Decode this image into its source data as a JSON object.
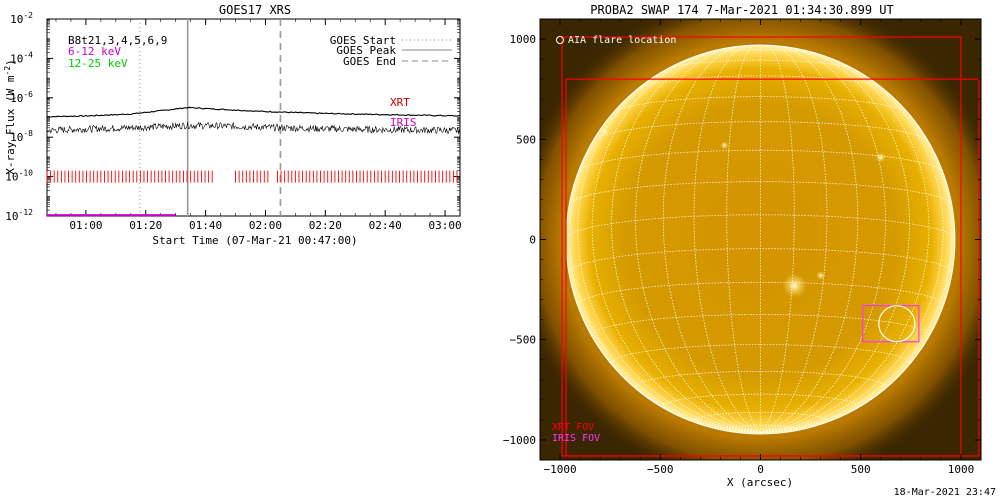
{
  "footer": {
    "timestamp": "18-Mar-2021 23:47"
  },
  "colors": {
    "xrt": "#ff0000",
    "iris": "#cc00cc",
    "green": "#00cc00",
    "sun_core": "#e8a500",
    "grid": "#ffffff"
  },
  "chart_data": [
    {
      "type": "line",
      "title": "GOES17 XRS",
      "xlabel": "Start Time (07-Mar-21 00:47:00)",
      "ylabel": "X-ray Flux (W m",
      "ylabel_sup": "-2",
      "ylabel_close": ")",
      "y_scale": "log",
      "xlim": [
        "00:47",
        "03:05"
      ],
      "ylim": [
        1e-12,
        0.01
      ],
      "x_ticks": [
        "01:00",
        "01:20",
        "01:40",
        "02:00",
        "02:20",
        "02:40",
        "03:00"
      ],
      "y_ticks": [
        {
          "base": "10",
          "exp": "-2"
        },
        {
          "base": "10",
          "exp": "-4"
        },
        {
          "base": "10",
          "exp": "-6"
        },
        {
          "base": "10",
          "exp": "-8"
        },
        {
          "base": "10",
          "exp": "-10"
        },
        {
          "base": "10",
          "exp": "-12"
        }
      ],
      "info_lines": [
        {
          "text": "B8t21,3,4,5,6,9",
          "color": "#000000"
        },
        {
          "text": "6-12 keV",
          "color": "#cc00cc"
        },
        {
          "text": "12-25 keV",
          "color": "#00cc00"
        }
      ],
      "legend": [
        {
          "label": "GOES Start",
          "style": "dotted"
        },
        {
          "label": "GOES Peak",
          "style": "solid"
        },
        {
          "label": "GOES End",
          "style": "dashed"
        }
      ],
      "legend_position": "top-right",
      "event_lines": [
        {
          "name": "GOES Start",
          "time": "01:18",
          "style": "dotted"
        },
        {
          "name": "GOES Peak",
          "time": "01:34",
          "style": "solid"
        },
        {
          "name": "GOES End",
          "time": "02:05",
          "style": "dashed"
        }
      ],
      "series": [
        {
          "name": "",
          "band": "long",
          "x": [
            "00:47",
            "01:00",
            "01:15",
            "01:25",
            "01:34",
            "01:45",
            "02:00",
            "02:20",
            "02:40",
            "03:05"
          ],
          "y": [
            1.1e-07,
            1.2e-07,
            1.5e-07,
            2.2e-07,
            3.2e-07,
            2.6e-07,
            2e-07,
            1.6e-07,
            1.4e-07,
            1.2e-07
          ]
        },
        {
          "name": "",
          "band": "short",
          "x": [
            "00:47",
            "01:00",
            "01:20",
            "01:34",
            "01:50",
            "02:05",
            "02:30",
            "03:05"
          ],
          "y": [
            2.2e-08,
            2.6e-08,
            3.2e-08,
            4e-08,
            3.6e-08,
            3e-08,
            2.5e-08,
            2.2e-08
          ]
        }
      ],
      "xrt_label": "XRT",
      "iris_label": "IRIS",
      "xrt_coverage": {
        "y": 1e-10,
        "segments": [
          [
            "00:47",
            "01:34"
          ],
          [
            "01:35",
            "01:43"
          ],
          [
            "01:50",
            "02:02"
          ],
          [
            "02:04",
            "03:05"
          ]
        ]
      },
      "iris_coverage": {
        "y": 1.1e-12,
        "segments": [
          [
            "00:47",
            "01:30"
          ]
        ]
      }
    },
    {
      "type": "image",
      "title": "PROBA2 SWAP 174  7-Mar-2021 01:34:30.899 UT",
      "xlabel": "X (arcsec)",
      "ylabel": "",
      "xlim": [
        -1100,
        1100
      ],
      "ylim": [
        -1100,
        1100
      ],
      "x_ticks": [
        -1000,
        -500,
        0,
        500,
        1000
      ],
      "y_ticks": [
        -1000,
        -500,
        0,
        500,
        1000
      ],
      "solar_radius": 970,
      "legend_text": "AIA flare location",
      "xrt_fov_label": "XRT FOV",
      "iris_fov_label": "IRIS FOV",
      "xrt_fov": [
        [
          -990,
          -1080,
          1000,
          1010
        ],
        [
          -970,
          -1080,
          1090,
          800
        ]
      ],
      "iris_fov": [
        510,
        -510,
        790,
        -330
      ],
      "flare_location": [
        680,
        -420
      ],
      "bright_regions": [
        [
          170,
          -230,
          60
        ],
        [
          -780,
          540,
          30
        ],
        [
          600,
          410,
          25
        ],
        [
          -180,
          470,
          20
        ],
        [
          300,
          -180,
          22
        ]
      ]
    }
  ]
}
